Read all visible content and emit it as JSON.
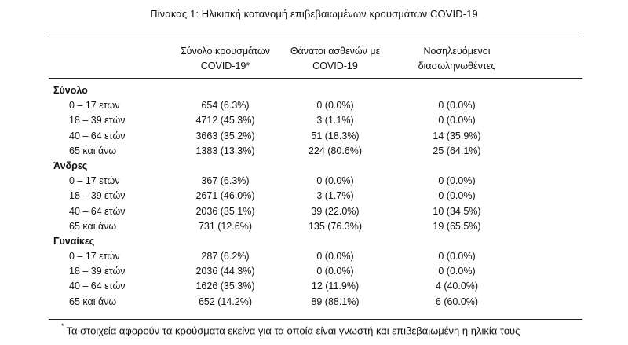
{
  "title": "Πίνακας 1: Ηλικιακή κατανομή επιβεβαιωμένων κρουσμάτων COVID-19",
  "columns": [
    [
      "Σύνολο κρουσμάτων",
      "COVID-19*"
    ],
    [
      "Θάνατοι ασθενών με",
      "COVID-19"
    ],
    [
      "Νοσηλευόμενοι",
      "διασωληνωθέντες"
    ]
  ],
  "groups": [
    {
      "name": "Σύνολο",
      "rows": [
        [
          "0 – 17 ετών",
          "654 (6.3%)",
          "0 (0.0%)",
          "0 (0.0%)"
        ],
        [
          "18 – 39 ετών",
          "4712 (45.3%)",
          "3 (1.1%)",
          "0 (0.0%)"
        ],
        [
          "40 – 64 ετών",
          "3663 (35.2%)",
          "51 (18.3%)",
          "14 (35.9%)"
        ],
        [
          "65 και άνω",
          "1383 (13.3%)",
          "224 (80.6%)",
          "25 (64.1%)"
        ]
      ]
    },
    {
      "name": "Άνδρες",
      "rows": [
        [
          "0 – 17 ετών",
          "367 (6.3%)",
          "0 (0.0%)",
          "0 (0.0%)"
        ],
        [
          "18 – 39 ετών",
          "2671 (46.0%)",
          "3 (1.7%)",
          "0 (0.0%)"
        ],
        [
          "40 – 64 ετών",
          "2036 (35.1%)",
          "39 (22.0%)",
          "10 (34.5%)"
        ],
        [
          "65 και άνω",
          "731 (12.6%)",
          "135 (76.3%)",
          "19 (65.5%)"
        ]
      ]
    },
    {
      "name": "Γυναίκες",
      "rows": [
        [
          "0 – 17 ετών",
          "287 (6.2%)",
          "0 (0.0%)",
          "0 (0.0%)"
        ],
        [
          "18 – 39 ετών",
          "2036 (44.3%)",
          "0 (0.0%)",
          "0 (0.0%)"
        ],
        [
          "40 – 64 ετών",
          "1626 (35.3%)",
          "12 (11.9%)",
          "4 (40.0%)"
        ],
        [
          "65 και άνω",
          "652 (14.2%)",
          "89 (88.1%)",
          "6 (60.0%)"
        ]
      ]
    }
  ],
  "footnote": {
    "mark": "*",
    "text": "Τα στοιχεία αφορούν τα κρούσματα εκείνα για τα οποία είναι γνωστή και επιβεβαιωμένη η ηλικία τους"
  }
}
